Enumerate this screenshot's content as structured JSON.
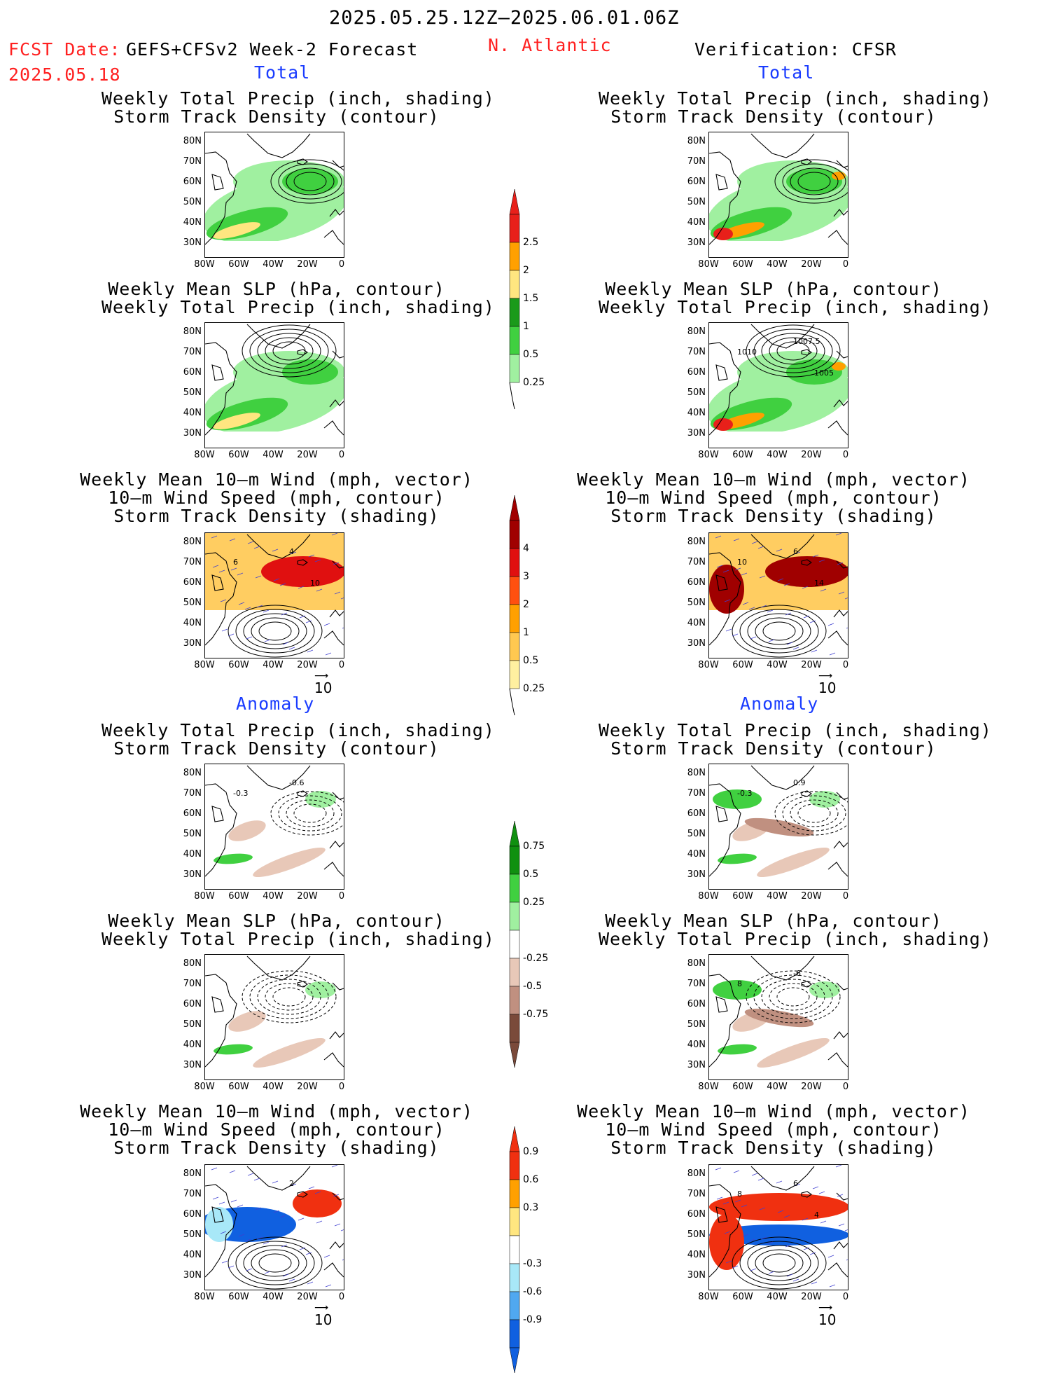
{
  "header": {
    "date_range": "2025.05.25.12Z–2025.06.01.06Z",
    "fcst_prefix": "FCST Date:",
    "fcst_model": "GEFS+CFSv2 Week-2 Forecast",
    "fcst_date": "2025.05.18",
    "region": "N. Atlantic",
    "verification": "Verification: CFSR"
  },
  "sections": {
    "total": "Total",
    "anomaly": "Anomaly"
  },
  "titles": {
    "precip_storm": [
      "Weekly Total Precip (inch, shading)",
      "Storm Track Density (contour)"
    ],
    "slp_precip": [
      "Weekly Mean SLP (hPa, contour)",
      "Weekly Total Precip (inch, shading)"
    ],
    "wind_storm": [
      "Weekly Mean 10–m Wind (mph, vector)",
      "10–m Wind Speed (mph, contour)",
      "Storm Track Density (shading)"
    ]
  },
  "axes": {
    "lat": [
      "80N",
      "70N",
      "60N",
      "50N",
      "40N",
      "30N"
    ],
    "lon": [
      "80W",
      "60W",
      "40W",
      "20W",
      "0"
    ]
  },
  "vector_ref": "10",
  "colorbars": {
    "precip_total": {
      "labels": [
        "2.5",
        "2",
        "1.5",
        "1",
        "0.5",
        "0.25"
      ],
      "colors": [
        "#e8201a",
        "#ffa000",
        "#ffe680",
        "#1a9a1a",
        "#40d040",
        "#a0f0a0"
      ]
    },
    "storm_total": {
      "labels": [
        "4",
        "3",
        "2",
        "1",
        "0.5",
        "0.25"
      ],
      "colors": [
        "#a00000",
        "#e01010",
        "#ff5010",
        "#ffa000",
        "#ffc850",
        "#fff0a0"
      ]
    },
    "precip_anom": {
      "labels": [
        "0.75",
        "0.5",
        "0.25",
        "-0.25",
        "-0.5",
        "-0.75"
      ],
      "colors": [
        "#109010",
        "#40d040",
        "#a0f0a0",
        "#ffffff",
        "#e8c8b8",
        "#c09080",
        "#7a4a3a"
      ]
    },
    "storm_anom": {
      "labels": [
        "0.9",
        "0.6",
        "0.3",
        "-0.3",
        "-0.6",
        "-0.9"
      ],
      "colors": [
        "#f03010",
        "#ffa000",
        "#ffe680",
        "#ffffff",
        "#a8e8f8",
        "#50a8f0",
        "#1060e0"
      ]
    }
  },
  "contour_labels": {
    "p_f_total_slp": [],
    "p_v_total_slp": [
      "1007.5",
      "1010",
      "1005"
    ],
    "p_f_total_wind": [
      "4",
      "6",
      "10"
    ],
    "p_v_total_wind": [
      "6",
      "10",
      "14"
    ],
    "p_f_anom_precip": [
      "-0.6",
      "-0.3"
    ],
    "p_v_anom_precip": [
      "0.9",
      "-0.3"
    ],
    "p_f_anom_wind": [
      "2"
    ],
    "p_v_anom_wind": [
      "6",
      "8",
      "4"
    ],
    "p_v_anom_slp": [
      "-6",
      "8"
    ]
  },
  "colors": {
    "title_red": "#ff2020",
    "section_blue": "#1a3cff"
  }
}
